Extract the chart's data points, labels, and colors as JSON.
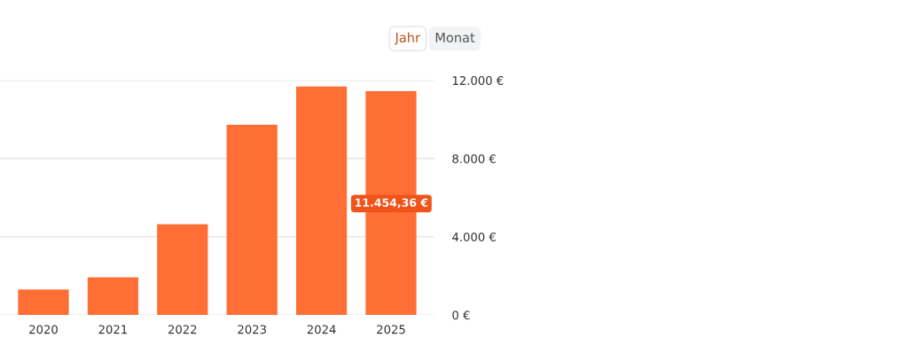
{
  "chart_data": {
    "type": "bar",
    "categories": [
      "2020",
      "2021",
      "2022",
      "2023",
      "2024",
      "2025"
    ],
    "values": [
      1300,
      1930,
      4640,
      9730,
      11690,
      11450
    ],
    "color": "#ff6f35",
    "ylim": [
      0,
      12000
    ],
    "yticks": [
      {
        "value": 0,
        "label": "0 €"
      },
      {
        "value": 4000,
        "label": "4.000 €"
      },
      {
        "value": 8000,
        "label": "8.000 €"
      },
      {
        "value": 12000,
        "label": "12.000 €"
      }
    ],
    "grid": "y",
    "annotations": [
      "Jahr",
      "Monat",
      "11.454,36 €"
    ]
  }
}
